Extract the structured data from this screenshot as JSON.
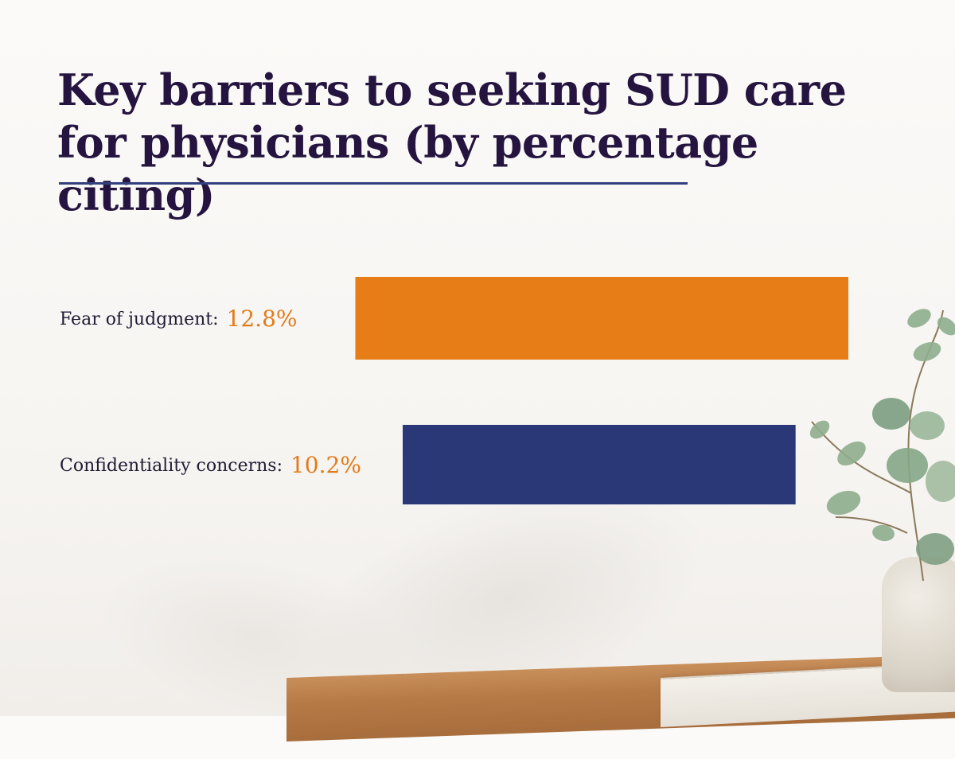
{
  "chart_data": {
    "type": "bar",
    "orientation": "horizontal",
    "title": "Key barriers to seeking SUD care for physicians (by percentage citing)",
    "categories": [
      "Fear of judgment:",
      "Confidentiality concerns:"
    ],
    "values": [
      12.8,
      10.2
    ],
    "value_labels": [
      "12.8%",
      "10.2%"
    ],
    "unit": "%",
    "colors": [
      "#e77d17",
      "#2a3878"
    ],
    "value_label_color": "#e27b1a",
    "grid": false,
    "legend": "none"
  },
  "decor": {
    "rule_color": "#33407e",
    "plant_icon": "eucalyptus-plant-icon",
    "vase_icon": "ceramic-vase-icon"
  }
}
